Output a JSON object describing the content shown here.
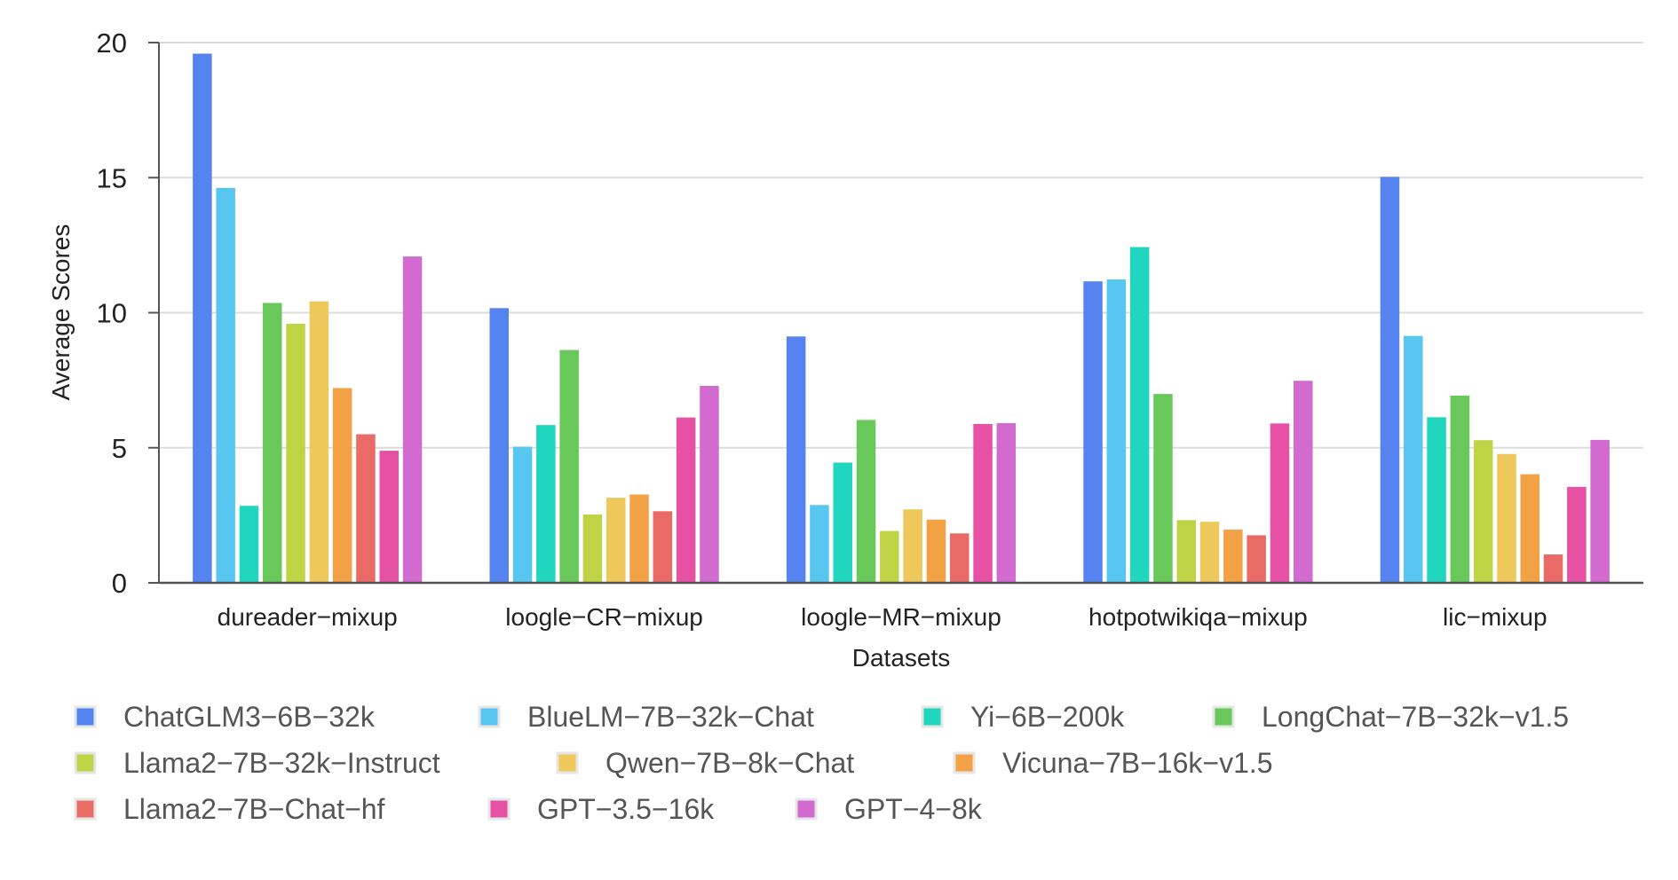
{
  "chart_data": {
    "type": "bar",
    "xlabel": "Datasets",
    "ylabel": "Average Scores",
    "ylim": [
      0,
      20
    ],
    "yticks": [
      0,
      5,
      10,
      15,
      20
    ],
    "grid": true,
    "legend_position": "bottom",
    "categories": [
      "dureader−mixup",
      "loogle−CR−mixup",
      "loogle−MR−mixup",
      "hotpotwikiqa−mixup",
      "lic−mixup"
    ],
    "series": [
      {
        "name": "ChatGLM3−6B−32k",
        "color": "#5584f0",
        "values": [
          19.59,
          10.17,
          9.12,
          11.16,
          15.03
        ]
      },
      {
        "name": "BlueLM−7B−32k−Chat",
        "color": "#57c6f0",
        "values": [
          14.62,
          5.04,
          2.88,
          11.23,
          9.14
        ]
      },
      {
        "name": "Yi−6B−200k",
        "color": "#20d6be",
        "values": [
          2.85,
          5.84,
          4.45,
          12.43,
          6.13
        ]
      },
      {
        "name": "LongChat−7B−32k−v1.5",
        "color": "#68c85a",
        "values": [
          10.36,
          8.62,
          6.03,
          6.99,
          6.93
        ]
      },
      {
        "name": "Llama2−7B−32k−Instruct",
        "color": "#bfd444",
        "values": [
          9.59,
          2.53,
          1.92,
          2.32,
          5.28
        ]
      },
      {
        "name": "Qwen−7B−8k−Chat",
        "color": "#eec85a",
        "values": [
          10.42,
          3.15,
          2.72,
          2.26,
          4.77
        ]
      },
      {
        "name": "Vicuna−7B−16k−v1.5",
        "color": "#f2a244",
        "values": [
          7.21,
          3.27,
          2.34,
          1.97,
          4.02
        ]
      },
      {
        "name": "Llama2−7B−Chat−hf",
        "color": "#ea6a66",
        "values": [
          5.5,
          2.65,
          1.83,
          1.76,
          1.05
        ]
      },
      {
        "name": "GPT−3.5−16k",
        "color": "#e651a3",
        "values": [
          4.89,
          6.12,
          5.88,
          5.9,
          3.55
        ]
      },
      {
        "name": "GPT−4−8k",
        "color": "#d26ad0",
        "values": [
          12.08,
          7.29,
          5.91,
          7.48,
          5.29
        ]
      }
    ]
  }
}
